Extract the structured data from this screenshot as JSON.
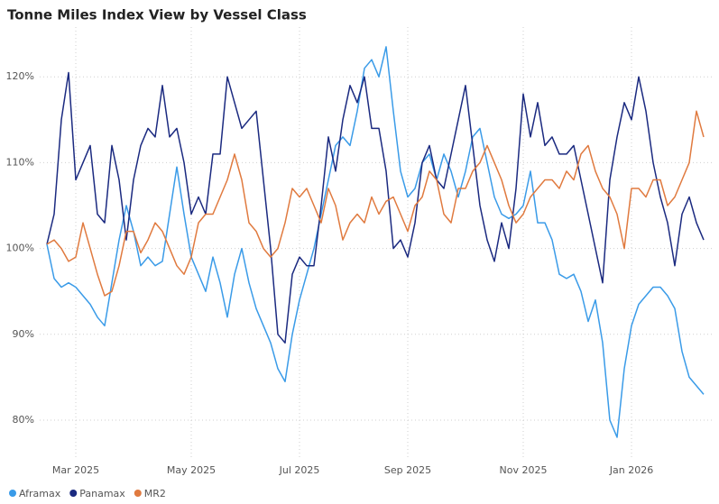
{
  "chart_data": {
    "type": "line",
    "title": "Tonne Miles Index View by Vessel Class",
    "categories": [
      null,
      null,
      null,
      null,
      "Mar 2025",
      null,
      null,
      null,
      null,
      null,
      null,
      null,
      null,
      null,
      null,
      null,
      null,
      null,
      null,
      null,
      "May 2025",
      null,
      null,
      null,
      null,
      null,
      null,
      null,
      null,
      null,
      null,
      null,
      null,
      null,
      null,
      "Jul 2025",
      null,
      null,
      null,
      null,
      null,
      null,
      null,
      null,
      null,
      null,
      null,
      null,
      null,
      null,
      "Sep 2025",
      null,
      null,
      null,
      null,
      null,
      null,
      null,
      null,
      null,
      null,
      null,
      null,
      null,
      null,
      null,
      "Nov 2025",
      null,
      null,
      null,
      null,
      null,
      null,
      null,
      null,
      null,
      null,
      null,
      null,
      null,
      null,
      "Jan 2026",
      null,
      null,
      null,
      null,
      null,
      null,
      null,
      null,
      null,
      null
    ],
    "series": [
      {
        "name": "Aframax",
        "color": "#3a9be8",
        "values": [
          100.5,
          96.5,
          95.5,
          96,
          95.5,
          94.5,
          93.5,
          92,
          91,
          96,
          101,
          105,
          102,
          98,
          99,
          98,
          98.5,
          104,
          109.5,
          104,
          99,
          97,
          95,
          99,
          96,
          92,
          97,
          100,
          96,
          93,
          91,
          89,
          86,
          84.5,
          90,
          94,
          97,
          100,
          104,
          108,
          112,
          113,
          112,
          116,
          121,
          122,
          120,
          123.5,
          116,
          109,
          106,
          107,
          110,
          111,
          108,
          111,
          109,
          106,
          109,
          113,
          114,
          110,
          106,
          104,
          103.5,
          104,
          105,
          109,
          103,
          103,
          101,
          97,
          96.5,
          97,
          95,
          91.5,
          94,
          89,
          80,
          78,
          86,
          91,
          93.5,
          94.5,
          95.5,
          95.5,
          94.5,
          93,
          88,
          85,
          84,
          83
        ]
      },
      {
        "name": "Panamax",
        "color": "#1b2a80",
        "values": [
          100.5,
          104,
          115,
          120.5,
          108,
          110,
          112,
          104,
          103,
          112,
          108,
          101,
          108,
          112,
          114,
          113,
          119,
          113,
          114,
          110,
          104,
          106,
          104,
          111,
          111,
          120,
          117,
          114,
          115,
          116,
          108,
          100,
          90,
          89,
          97,
          99,
          98,
          98,
          105,
          113,
          109,
          115,
          119,
          117,
          120,
          114,
          114,
          109,
          100,
          101,
          99,
          103,
          110,
          112,
          108,
          107,
          111,
          115,
          119,
          112,
          105,
          101,
          98.5,
          103,
          100,
          107,
          118,
          113,
          117,
          112,
          113,
          111,
          111,
          112,
          108,
          104,
          100,
          96,
          108,
          113,
          117,
          115,
          120,
          116,
          110,
          106,
          103,
          98,
          104,
          106,
          103,
          101
        ]
      },
      {
        "name": "MR2",
        "color": "#e07a3f",
        "values": [
          100.5,
          101,
          100,
          98.5,
          99,
          103,
          100,
          97,
          94.5,
          95,
          98,
          102,
          102,
          99.5,
          101,
          103,
          102,
          100,
          98,
          97,
          99,
          103,
          104,
          104,
          106,
          108,
          111,
          108,
          103,
          102,
          100,
          99,
          100,
          103,
          107,
          106,
          107,
          105,
          103,
          107,
          105,
          101,
          103,
          104,
          103,
          106,
          104,
          105.5,
          106,
          104,
          102,
          105,
          106,
          109,
          108,
          104,
          103,
          107,
          107,
          109,
          110,
          112,
          110,
          108,
          105,
          103,
          104,
          106,
          107,
          108,
          108,
          107,
          109,
          108,
          111,
          112,
          109,
          107,
          106,
          104,
          100,
          107,
          107,
          106,
          108,
          108,
          105,
          106,
          108,
          110,
          116,
          113
        ]
      }
    ],
    "ylim": [
      77.5,
      124.5
    ],
    "yticks": [
      {
        "value": 80,
        "label": "80%"
      },
      {
        "value": 90,
        "label": "90%"
      },
      {
        "value": 100,
        "label": "100%"
      },
      {
        "value": 110,
        "label": "110%"
      },
      {
        "value": 120,
        "label": "120%"
      }
    ],
    "grid": true
  }
}
